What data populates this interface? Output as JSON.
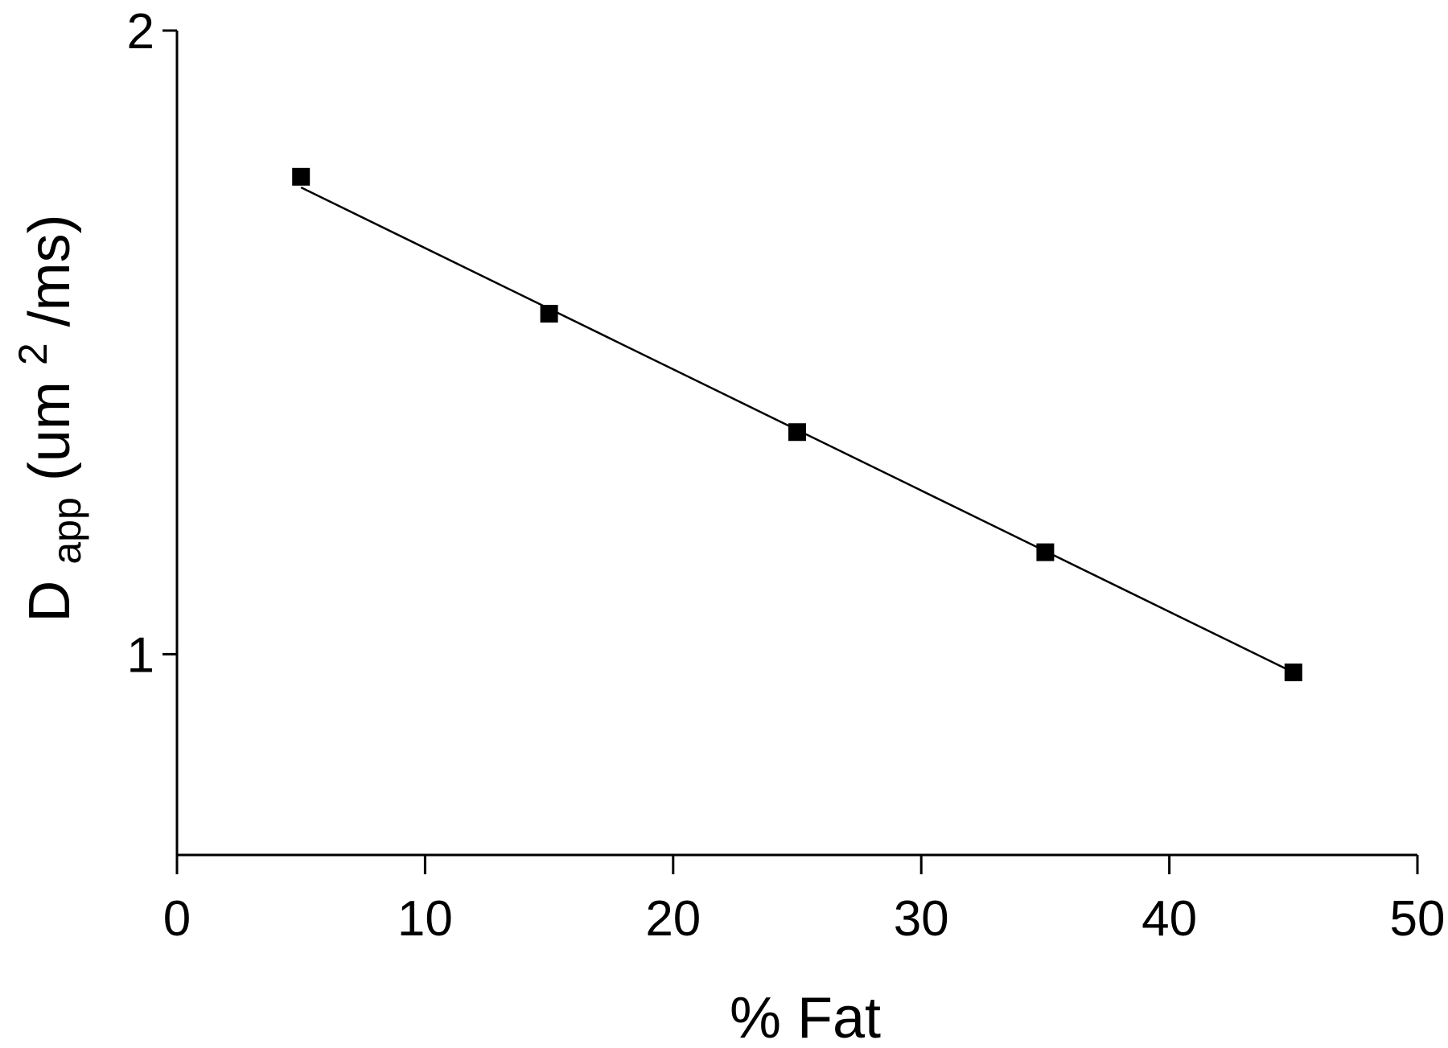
{
  "chart_data": {
    "type": "scatter",
    "title": "",
    "xlabel": "% Fat",
    "ylabel": {
      "main": "D",
      "subscript": "app",
      "units_open": " (um",
      "units_superscript": "2",
      "units_close": "/ms)"
    },
    "xlim": [
      0,
      50
    ],
    "ylim": [
      0.8,
      2
    ],
    "y_scale": "log",
    "x_ticks": [
      0,
      10,
      20,
      30,
      40,
      50
    ],
    "x_tick_labels": [
      "0",
      "10",
      "20",
      "30",
      "40",
      "50"
    ],
    "y_ticks": [
      1,
      2
    ],
    "y_tick_labels": [
      "1",
      "2"
    ],
    "grid": false,
    "legend": "none",
    "series": [
      {
        "x": [
          5,
          15,
          25,
          35,
          45
        ],
        "y": [
          1.7,
          1.46,
          1.28,
          1.12,
          0.98
        ],
        "marker": "square"
      }
    ],
    "fit_line": {
      "x": [
        5,
        45
      ],
      "y": [
        1.68,
        0.98
      ]
    }
  }
}
